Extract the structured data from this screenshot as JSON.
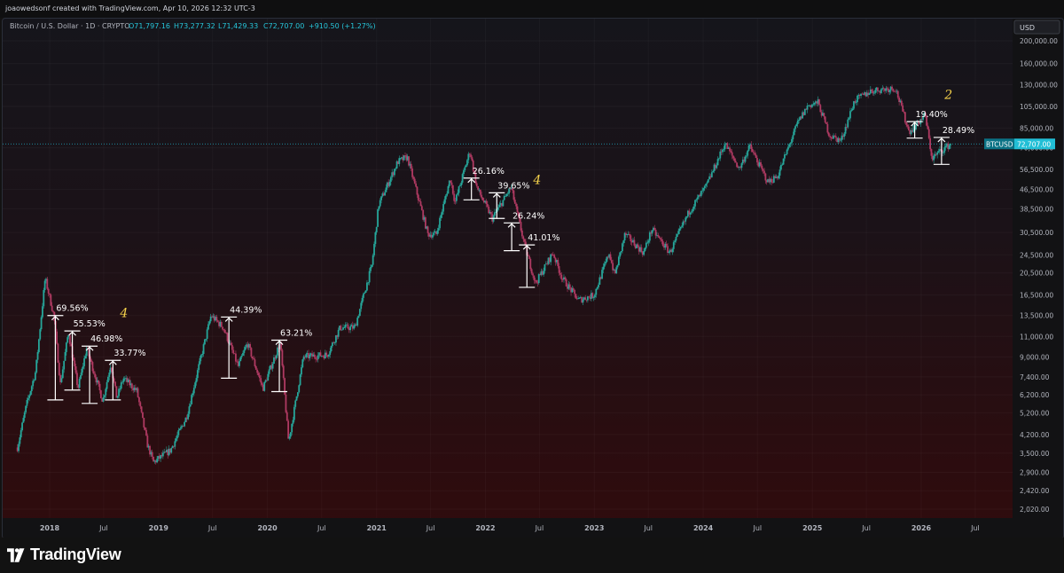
{
  "header": {
    "credit": "joaowedsonf created with TradingView.com, Apr 10, 2026 12:32 UTC-3"
  },
  "legend": {
    "symbol": "Bitcoin / U.S. Dollar · 1D · CRYPTO",
    "open": "O71,797.16",
    "high": "H73,277.32",
    "low": "L71,429.33",
    "close": "C72,707.00",
    "change": "+910.50 (+1.27%)"
  },
  "currency_button": "USD",
  "price_tag": {
    "symbol": "BTCUSD",
    "price": "72,707.00"
  },
  "footer": {
    "brand": "TradingView"
  },
  "colors": {
    "up": "#26a69a",
    "down": "#b03a62",
    "accent": "#22d3ee",
    "annotation": "#ffffff",
    "wave_label": "#f5d24b"
  },
  "chart_data": {
    "type": "candlestick",
    "scale": "log",
    "ylim": [
      1700,
      230000
    ],
    "ytick_labels": [
      "2,020.00",
      "2,420.00",
      "2,900.00",
      "3,500.00",
      "4,200.00",
      "5,200.00",
      "6,200.00",
      "7,400.00",
      "9,000.00",
      "11,000.00",
      "13,500.00",
      "16,500.00",
      "20,500.00",
      "24,500.00",
      "30,500.00",
      "38,500.00",
      "46,500.00",
      "56,500.00",
      "70,000.00",
      "85,000.00",
      "105,000.00",
      "130,000.00",
      "160,000.00",
      "200,000.00"
    ],
    "x_tick_labels": [
      "2018",
      "Jul",
      "2019",
      "Jul",
      "2020",
      "Jul",
      "2021",
      "Jul",
      "2022",
      "Jul",
      "2023",
      "Jul",
      "2024",
      "Jul",
      "2025",
      "Jul",
      "2026",
      "Jul"
    ],
    "x_tick_dates": [
      "2018-01-01",
      "2018-07-01",
      "2019-01-01",
      "2019-07-01",
      "2020-01-01",
      "2020-07-01",
      "2021-01-01",
      "2021-07-01",
      "2022-01-01",
      "2022-07-01",
      "2023-01-01",
      "2023-07-01",
      "2024-01-01",
      "2024-07-01",
      "2025-01-01",
      "2025-07-01",
      "2026-01-01",
      "2026-07-01"
    ],
    "current_price": 72707,
    "price_path": [
      [
        "2017-09-15",
        3700
      ],
      [
        "2017-10-15",
        5600
      ],
      [
        "2017-11-15",
        7800
      ],
      [
        "2017-12-17",
        19500
      ],
      [
        "2018-01-15",
        13500
      ],
      [
        "2018-02-06",
        6900
      ],
      [
        "2018-03-05",
        11500
      ],
      [
        "2018-04-06",
        6600
      ],
      [
        "2018-05-05",
        9800
      ],
      [
        "2018-06-28",
        5850
      ],
      [
        "2018-07-25",
        8400
      ],
      [
        "2018-08-14",
        6000
      ],
      [
        "2018-09-05",
        7300
      ],
      [
        "2018-10-20",
        6450
      ],
      [
        "2018-11-25",
        3800
      ],
      [
        "2018-12-15",
        3200
      ],
      [
        "2019-02-10",
        3600
      ],
      [
        "2019-04-05",
        5000
      ],
      [
        "2019-05-15",
        8100
      ],
      [
        "2019-06-26",
        13500
      ],
      [
        "2019-08-06",
        12000
      ],
      [
        "2019-09-25",
        8200
      ],
      [
        "2019-10-26",
        10300
      ],
      [
        "2019-12-17",
        6600
      ],
      [
        "2020-02-13",
        10400
      ],
      [
        "2020-03-12",
        3900
      ],
      [
        "2020-05-01",
        9000
      ],
      [
        "2020-07-20",
        9200
      ],
      [
        "2020-09-01",
        12000
      ],
      [
        "2020-10-20",
        12000
      ],
      [
        "2020-12-16",
        22000
      ],
      [
        "2021-01-08",
        40000
      ],
      [
        "2021-03-13",
        61000
      ],
      [
        "2021-04-14",
        64000
      ],
      [
        "2021-06-22",
        30000
      ],
      [
        "2021-07-20",
        30000
      ],
      [
        "2021-09-05",
        52000
      ],
      [
        "2021-09-21",
        41000
      ],
      [
        "2021-11-10",
        68000
      ],
      [
        "2021-12-04",
        47000
      ],
      [
        "2022-01-24",
        35000
      ],
      [
        "2022-03-28",
        47500
      ],
      [
        "2022-05-12",
        27000
      ],
      [
        "2022-06-18",
        18500
      ],
      [
        "2022-08-15",
        25000
      ],
      [
        "2022-09-15",
        19500
      ],
      [
        "2022-11-09",
        15700
      ],
      [
        "2022-12-31",
        16500
      ],
      [
        "2023-02-20",
        25000
      ],
      [
        "2023-03-10",
        20000
      ],
      [
        "2023-04-14",
        30000
      ],
      [
        "2023-06-15",
        25000
      ],
      [
        "2023-07-13",
        31500
      ],
      [
        "2023-09-11",
        25000
      ],
      [
        "2023-11-15",
        37500
      ],
      [
        "2024-01-11",
        48000
      ],
      [
        "2024-03-14",
        73000
      ],
      [
        "2024-05-01",
        57000
      ],
      [
        "2024-06-05",
        71000
      ],
      [
        "2024-08-05",
        50000
      ],
      [
        "2024-09-06",
        53000
      ],
      [
        "2024-11-12",
        89000
      ],
      [
        "2024-12-17",
        106000
      ],
      [
        "2025-01-20",
        109000
      ],
      [
        "2025-02-28",
        79000
      ],
      [
        "2025-04-07",
        75000
      ],
      [
        "2025-05-22",
        111000
      ],
      [
        "2025-07-14",
        122000
      ],
      [
        "2025-08-14",
        124000
      ],
      [
        "2025-10-06",
        126000
      ],
      [
        "2025-11-21",
        82000
      ],
      [
        "2025-12-20",
        89000
      ],
      [
        "2026-01-14",
        97000
      ],
      [
        "2026-02-06",
        63000
      ],
      [
        "2026-03-01",
        67000
      ],
      [
        "2026-04-10",
        72707
      ]
    ],
    "annotations": [
      {
        "label": "69.56%",
        "date": "2018-01-20",
        "high": 13500,
        "low": 5900
      },
      {
        "label": "55.53%",
        "date": "2018-03-18",
        "high": 11600,
        "low": 6500
      },
      {
        "label": "46.98%",
        "date": "2018-05-15",
        "high": 10000,
        "low": 5700
      },
      {
        "label": "33.77%",
        "date": "2018-08-01",
        "high": 8700,
        "low": 5900
      },
      {
        "label": "44.39%",
        "date": "2019-08-25",
        "high": 13300,
        "low": 7300
      },
      {
        "label": "63.21%",
        "date": "2020-02-10",
        "high": 10600,
        "low": 6400
      },
      {
        "label": "26.16%",
        "date": "2021-11-15",
        "high": 52000,
        "low": 42000
      },
      {
        "label": "39.65%",
        "date": "2022-02-08",
        "high": 45000,
        "low": 35000
      },
      {
        "label": "26.24%",
        "date": "2022-03-30",
        "high": 33500,
        "low": 25500
      },
      {
        "label": "41.01%",
        "date": "2022-05-20",
        "high": 27000,
        "low": 17800
      },
      {
        "label": "19.40%",
        "date": "2025-12-10",
        "high": 90500,
        "low": 77000
      },
      {
        "label": "28.49%",
        "date": "2026-03-10",
        "high": 77500,
        "low": 59500
      }
    ],
    "wave_labels": [
      {
        "label": "4",
        "date": "2018-08-25",
        "price": 13300
      },
      {
        "label": "4",
        "date": "2022-06-10",
        "price": 49000
      },
      {
        "label": "2",
        "date": "2026-03-20",
        "price": 113000
      }
    ]
  }
}
